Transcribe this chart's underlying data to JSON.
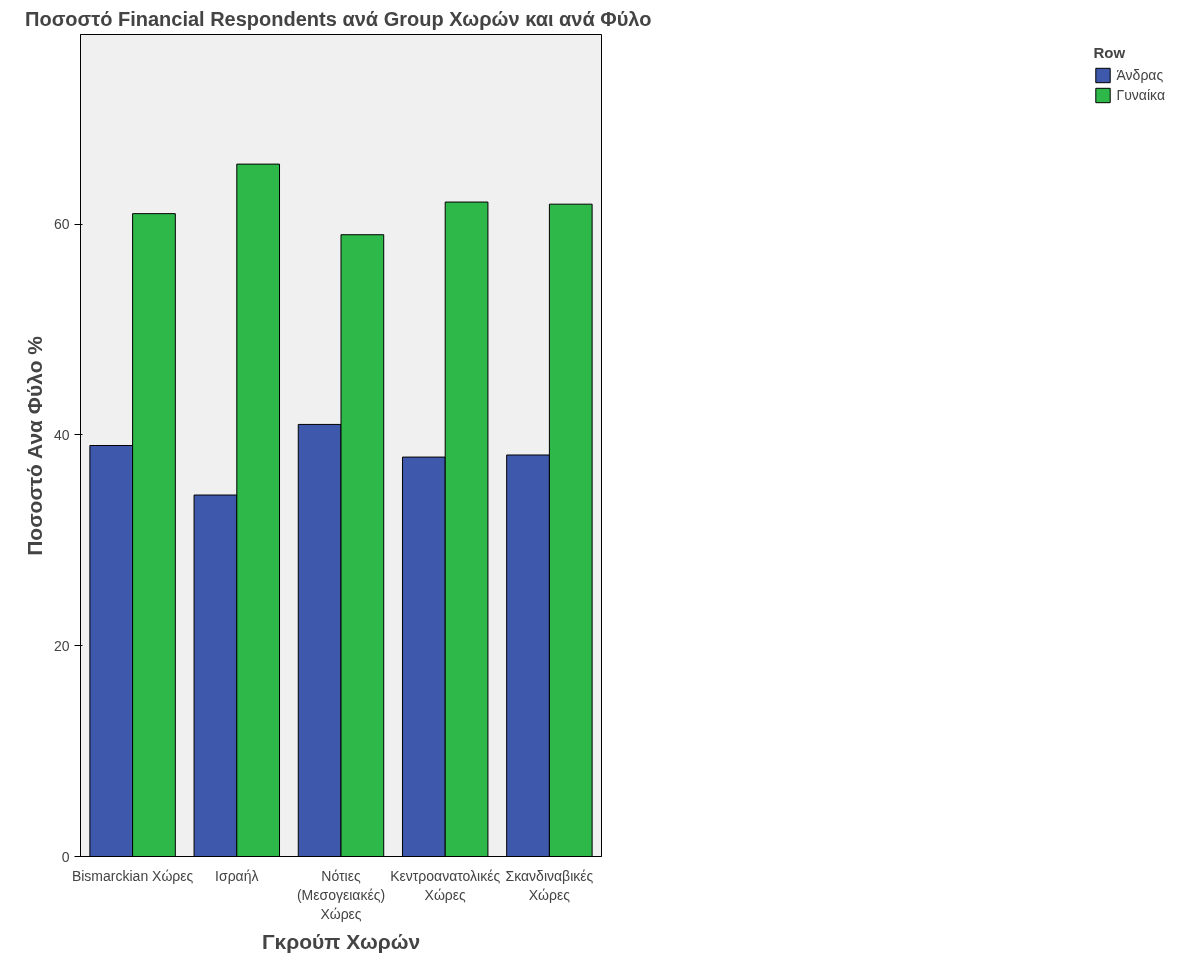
{
  "chart_data": {
    "type": "bar",
    "title": "Ποσοστό  Financial Respondents ανά Group Χωρών και ανά Φύλο",
    "xlabel": "Γκρούπ Χωρών",
    "ylabel": "Ποσοστό Ανα Φύλο %",
    "legend_title": "Row",
    "categories": [
      "Bismarckian Χώρες",
      "Ισραήλ",
      "Νότιες\n(Μεσογειακές)\nΧώρες",
      "Κεντροανατολικές\nΧώρες",
      "Σκανδιναβικές\nΧώρες"
    ],
    "series": [
      {
        "name": "Άνδρας",
        "color": "#3e58ac",
        "values": [
          39.0,
          34.3,
          41.0,
          37.9,
          38.1
        ]
      },
      {
        "name": "Γυναίκα",
        "color": "#2eb84a",
        "values": [
          61.0,
          65.7,
          59.0,
          62.1,
          61.9
        ]
      }
    ],
    "ylim": [
      0,
      78
    ],
    "yticks": [
      0,
      20,
      40,
      60
    ],
    "grid": false,
    "legend": "top right"
  }
}
